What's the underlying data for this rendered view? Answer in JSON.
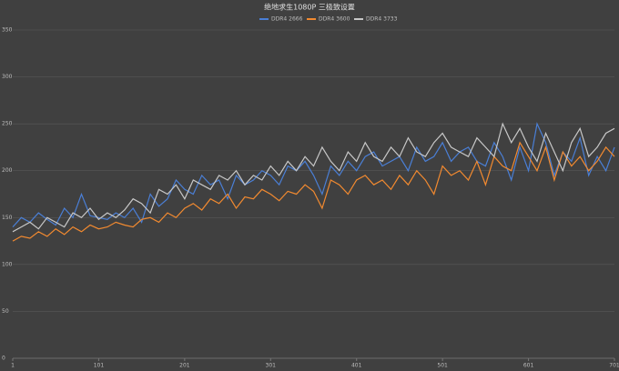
{
  "chart_data": {
    "type": "line",
    "title": "绝地求生1080P 三极致设置",
    "x": [
      1,
      11,
      21,
      31,
      41,
      51,
      61,
      71,
      81,
      91,
      101,
      111,
      121,
      131,
      141,
      151,
      161,
      171,
      181,
      191,
      201,
      211,
      221,
      231,
      241,
      251,
      261,
      271,
      281,
      291,
      301,
      311,
      321,
      331,
      341,
      351,
      361,
      371,
      381,
      391,
      401,
      411,
      421,
      431,
      441,
      451,
      461,
      471,
      481,
      491,
      501,
      511,
      521,
      531,
      541,
      551,
      561,
      571,
      581,
      591,
      601,
      611,
      621,
      631,
      641,
      651,
      661,
      671,
      681,
      691,
      701
    ],
    "xlim": [
      1,
      701
    ],
    "xticks": [
      1,
      101,
      201,
      301,
      401,
      501,
      601,
      701
    ],
    "ylim": [
      0,
      350
    ],
    "yticks": [
      0,
      50,
      100,
      150,
      200,
      250,
      300,
      350
    ],
    "grid": true,
    "series": [
      {
        "name": "DDR4 2666",
        "color": "#4a7fd6",
        "values": [
          140,
          150,
          145,
          155,
          148,
          142,
          160,
          150,
          175,
          152,
          150,
          148,
          155,
          150,
          160,
          145,
          175,
          162,
          170,
          190,
          180,
          175,
          195,
          185,
          190,
          170,
          195,
          185,
          190,
          200,
          195,
          185,
          205,
          200,
          210,
          195,
          175,
          205,
          195,
          210,
          200,
          215,
          220,
          205,
          210,
          215,
          200,
          225,
          210,
          215,
          230,
          210,
          220,
          225,
          210,
          205,
          230,
          215,
          190,
          225,
          200,
          250,
          230,
          195,
          220,
          210,
          235,
          195,
          215,
          200,
          225
        ]
      },
      {
        "name": "DDR4 3600",
        "color": "#f28a30",
        "values": [
          125,
          130,
          128,
          135,
          130,
          138,
          132,
          140,
          135,
          142,
          138,
          140,
          145,
          142,
          140,
          148,
          150,
          145,
          155,
          150,
          160,
          165,
          158,
          170,
          165,
          175,
          160,
          172,
          170,
          180,
          175,
          168,
          178,
          175,
          185,
          178,
          160,
          190,
          185,
          175,
          190,
          195,
          185,
          190,
          180,
          195,
          185,
          200,
          190,
          175,
          205,
          195,
          200,
          190,
          210,
          185,
          215,
          205,
          200,
          230,
          215,
          200,
          225,
          190,
          220,
          205,
          215,
          200,
          210,
          225,
          215
        ]
      },
      {
        "name": "DDR4 3733",
        "color": "#c8c8c8",
        "values": [
          135,
          140,
          145,
          138,
          150,
          145,
          140,
          155,
          150,
          160,
          148,
          155,
          150,
          158,
          170,
          165,
          155,
          180,
          175,
          185,
          170,
          190,
          185,
          180,
          195,
          190,
          200,
          185,
          195,
          190,
          205,
          195,
          210,
          200,
          215,
          205,
          225,
          210,
          200,
          220,
          210,
          230,
          215,
          210,
          225,
          215,
          235,
          220,
          215,
          230,
          240,
          225,
          220,
          215,
          235,
          225,
          215,
          250,
          230,
          245,
          225,
          210,
          240,
          220,
          200,
          230,
          245,
          215,
          225,
          240,
          245
        ]
      }
    ]
  }
}
